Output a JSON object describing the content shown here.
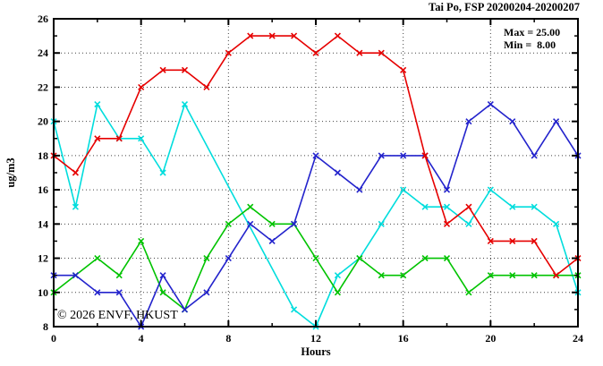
{
  "header": {
    "title": "Tai Po, FSP 20200204-20200207"
  },
  "legend": {
    "max_label": "Max = 25.00",
    "min_label": "Min =  8.00"
  },
  "watermark": "© 2026 ENVF, HKUST",
  "colors": {
    "cyan_series": "#00dddd",
    "green_series": "#00c300",
    "blue_series": "#2323cc",
    "red_series": "#e60000",
    "axis": "#000000",
    "grid": "#444444",
    "watermark": "#d9d9d9",
    "background": "#ffffff"
  },
  "chart_data": {
    "type": "line",
    "title": "Tai Po, FSP 20200204-20200207",
    "xlabel": "Hours",
    "ylabel": "ug/m3",
    "xlim": [
      0,
      24
    ],
    "ylim": [
      8,
      26
    ],
    "x_major_ticks": [
      0,
      4,
      8,
      12,
      16,
      20,
      24
    ],
    "x_minor_ticks": [
      2,
      6,
      10,
      14,
      18,
      22
    ],
    "y_major_ticks": [
      8,
      10,
      12,
      14,
      16,
      18,
      20,
      22,
      24,
      26
    ],
    "y_minor_ticks": [
      9,
      11,
      13,
      15,
      17,
      19,
      21,
      23,
      25
    ],
    "grid": "dotted at interior major ticks",
    "legend_position": "top-right-inside",
    "annotations": [
      "Max = 25.00",
      "Min =  8.00"
    ],
    "x": [
      0,
      1,
      2,
      3,
      4,
      5,
      6,
      7,
      8,
      9,
      10,
      11,
      12,
      13,
      14,
      15,
      16,
      17,
      18,
      19,
      20,
      21,
      22,
      23,
      24
    ],
    "series": [
      {
        "name": "series-cyan",
        "color": "#00dddd",
        "marker": "x",
        "values": [
          20,
          15,
          21,
          19,
          19,
          17,
          21,
          null,
          null,
          null,
          null,
          9,
          8,
          11,
          12,
          14,
          16,
          15,
          15,
          14,
          16,
          15,
          15,
          14,
          10
        ]
      },
      {
        "name": "series-green",
        "color": "#00c300",
        "marker": "x",
        "values": [
          10,
          11,
          12,
          11,
          13,
          10,
          9,
          12,
          14,
          15,
          14,
          14,
          12,
          10,
          12,
          11,
          11,
          12,
          12,
          10,
          11,
          11,
          11,
          11,
          11
        ]
      },
      {
        "name": "series-blue",
        "color": "#2323cc",
        "marker": "x",
        "values": [
          11,
          11,
          10,
          10,
          8,
          11,
          9,
          10,
          12,
          14,
          13,
          14,
          18,
          17,
          16,
          18,
          18,
          18,
          16,
          20,
          21,
          20,
          18,
          20,
          18
        ]
      },
      {
        "name": "series-red",
        "color": "#e60000",
        "marker": "x",
        "values": [
          18,
          17,
          19,
          19,
          22,
          23,
          23,
          22,
          24,
          25,
          25,
          25,
          24,
          25,
          24,
          24,
          23,
          18,
          14,
          15,
          13,
          13,
          13,
          11,
          12
        ]
      }
    ]
  }
}
